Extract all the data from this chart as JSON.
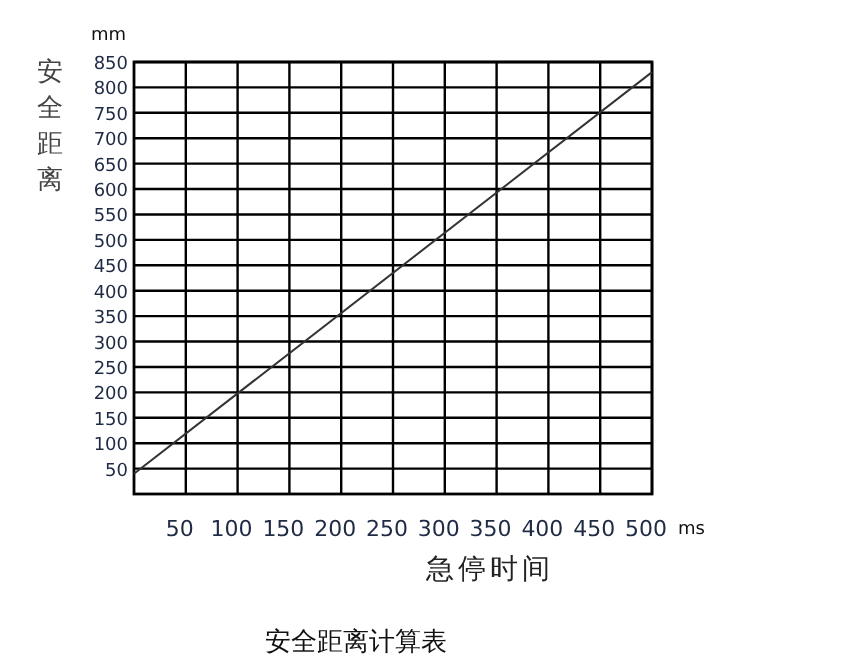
{
  "chart_data": {
    "type": "line",
    "title": "安全距离计算表",
    "xlabel": "急停时间",
    "ylabel": "安全距离",
    "annotations": [
      "mm",
      "ms"
    ],
    "x": [
      0,
      500
    ],
    "series": [
      {
        "color": "#333333",
        "values": [
          40,
          830
        ]
      }
    ],
    "xlim": [
      0,
      500
    ],
    "ylim": [
      0,
      850
    ],
    "xticks": [
      50,
      100,
      150,
      200,
      250,
      300,
      350,
      400,
      450,
      500
    ],
    "yticks": [
      50,
      100,
      150,
      200,
      250,
      300,
      350,
      400,
      450,
      500,
      550,
      600,
      650,
      700,
      750,
      800,
      850
    ],
    "grid": true
  }
}
